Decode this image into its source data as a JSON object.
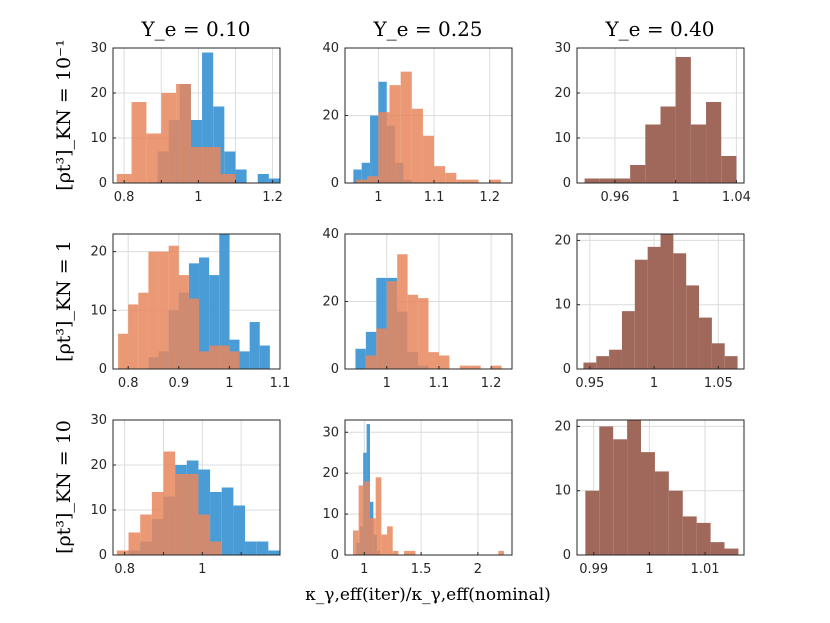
{
  "figure": {
    "col_titles": [
      "Y_e = 0.10",
      "Y_e = 0.25",
      "Y_e = 0.40"
    ],
    "row_labels": [
      "[ρt³]_KN = 10⁻¹",
      "[ρt³]_KN = 1",
      "[ρt³]_KN = 10"
    ],
    "xlabel": "κ_γ,eff(iter)/κ_γ,eff(nominal)",
    "colors": {
      "blue": "#4a9cd6",
      "orange": "#e8875d",
      "overlap": "#a0685a"
    }
  },
  "chart_data": [
    {
      "type": "histogram",
      "title": "Y_e = 0.10",
      "ylabel": "[ρt³]_KN = 10⁻¹",
      "xlim": [
        0.77,
        1.22
      ],
      "ylim": [
        0,
        30
      ],
      "xticks": [
        0.8,
        0.9,
        1.0,
        1.1,
        1.2
      ],
      "xtick_labels": [
        "0.8",
        "",
        "1",
        "",
        "1.2"
      ],
      "yticks": [
        0,
        10,
        20,
        30
      ],
      "ytick_labels": [
        "0",
        "10",
        "20",
        "30"
      ],
      "series": [
        {
          "name": "blue",
          "edges": [
            0.89,
            0.92,
            0.95,
            0.98,
            1.01,
            1.04,
            1.07,
            1.1,
            1.13,
            1.16,
            1.19,
            1.22
          ],
          "counts": [
            7,
            14,
            22,
            14,
            29,
            17,
            7,
            3,
            0,
            2,
            1
          ]
        },
        {
          "name": "orange",
          "edges": [
            0.78,
            0.82,
            0.86,
            0.9,
            0.94,
            0.98,
            1.02,
            1.06,
            1.1
          ],
          "counts": [
            2,
            18,
            11,
            20,
            22,
            8,
            8,
            2
          ]
        }
      ]
    },
    {
      "type": "histogram",
      "title": "Y_e = 0.25",
      "ylabel": "",
      "xlim": [
        0.94,
        1.24
      ],
      "ylim": [
        0,
        40
      ],
      "xticks": [
        1.0,
        1.1,
        1.2
      ],
      "xtick_labels": [
        "1",
        "1.1",
        "1.2"
      ],
      "yticks": [
        0,
        20,
        40
      ],
      "ytick_labels": [
        "0",
        "20",
        "40"
      ],
      "series": [
        {
          "name": "blue",
          "edges": [
            0.955,
            0.97,
            0.985,
            1.0,
            1.015,
            1.03,
            1.045,
            1.06
          ],
          "counts": [
            4,
            6,
            20,
            30,
            17,
            6,
            1
          ]
        },
        {
          "name": "orange",
          "edges": [
            0.96,
            0.98,
            1.0,
            1.02,
            1.04,
            1.06,
            1.08,
            1.1,
            1.12,
            1.14,
            1.16,
            1.18,
            1.2,
            1.22
          ],
          "counts": [
            1,
            2,
            21,
            29,
            33,
            22,
            14,
            5,
            3,
            1,
            1,
            0,
            1
          ]
        }
      ]
    },
    {
      "type": "histogram",
      "title": "Y_e = 0.40",
      "ylabel": "",
      "xlim": [
        0.935,
        1.045
      ],
      "ylim": [
        0,
        30
      ],
      "xticks": [
        0.96,
        1.0,
        1.04
      ],
      "xtick_labels": [
        "0.96",
        "1",
        "1.04"
      ],
      "yticks": [
        0,
        10,
        20,
        30
      ],
      "ytick_labels": [
        "0",
        "10",
        "20",
        "30"
      ],
      "series": [
        {
          "name": "overlap",
          "edges": [
            0.94,
            0.95,
            0.96,
            0.97,
            0.98,
            0.99,
            1.0,
            1.01,
            1.02,
            1.03,
            1.04
          ],
          "counts": [
            1,
            1,
            1,
            4,
            13,
            17,
            28,
            13,
            18,
            6
          ]
        }
      ]
    },
    {
      "type": "histogram",
      "title": "",
      "ylabel": "[ρt³]_KN = 1",
      "xlim": [
        0.77,
        1.1
      ],
      "ylim": [
        0,
        23
      ],
      "xticks": [
        0.8,
        0.9,
        1.0,
        1.1
      ],
      "xtick_labels": [
        "0.8",
        "0.9",
        "1",
        "1.1"
      ],
      "yticks": [
        0,
        10,
        20
      ],
      "ytick_labels": [
        "0",
        "10",
        "20"
      ],
      "series": [
        {
          "name": "blue",
          "edges": [
            0.84,
            0.86,
            0.88,
            0.9,
            0.92,
            0.94,
            0.96,
            0.98,
            1.0,
            1.02,
            1.04,
            1.06,
            1.08
          ],
          "counts": [
            2,
            3,
            10,
            13,
            18,
            19,
            16,
            23,
            5,
            3,
            8,
            4
          ]
        },
        {
          "name": "orange",
          "edges": [
            0.78,
            0.8,
            0.82,
            0.84,
            0.86,
            0.88,
            0.9,
            0.92,
            0.94,
            0.96,
            0.98,
            1.0,
            1.02
          ],
          "counts": [
            6,
            11,
            13,
            20,
            20,
            21,
            16,
            12,
            3,
            4,
            4,
            3
          ]
        }
      ]
    },
    {
      "type": "histogram",
      "title": "",
      "ylabel": "",
      "xlim": [
        0.92,
        1.24
      ],
      "ylim": [
        0,
        40
      ],
      "xticks": [
        1.0,
        1.1,
        1.2
      ],
      "xtick_labels": [
        "1",
        "1.1",
        "1.2"
      ],
      "yticks": [
        0,
        20,
        40
      ],
      "ytick_labels": [
        "0",
        "20",
        "40"
      ],
      "series": [
        {
          "name": "blue",
          "edges": [
            0.94,
            0.96,
            0.98,
            1.0,
            1.02,
            1.04,
            1.06,
            1.08
          ],
          "counts": [
            6,
            11,
            27,
            27,
            17,
            5,
            1
          ]
        },
        {
          "name": "orange",
          "edges": [
            0.96,
            0.98,
            1.0,
            1.02,
            1.04,
            1.06,
            1.08,
            1.1,
            1.12,
            1.14,
            1.16,
            1.18,
            1.2,
            1.22
          ],
          "counts": [
            4,
            12,
            26,
            34,
            22,
            21,
            5,
            4,
            0,
            1,
            1,
            0,
            1
          ]
        }
      ]
    },
    {
      "type": "histogram",
      "title": "",
      "ylabel": "",
      "xlim": [
        0.94,
        1.07
      ],
      "ylim": [
        0,
        21
      ],
      "xticks": [
        0.95,
        1.0,
        1.05
      ],
      "xtick_labels": [
        "0.95",
        "1",
        "1.05"
      ],
      "yticks": [
        0,
        10,
        20
      ],
      "ytick_labels": [
        "0",
        "10",
        "20"
      ],
      "series": [
        {
          "name": "overlap",
          "edges": [
            0.945,
            0.955,
            0.965,
            0.975,
            0.985,
            0.995,
            1.005,
            1.015,
            1.025,
            1.035,
            1.045,
            1.055,
            1.065
          ],
          "counts": [
            1,
            2,
            3,
            9,
            17,
            19,
            21,
            18,
            13,
            8,
            4,
            2
          ]
        }
      ]
    },
    {
      "type": "histogram",
      "title": "",
      "ylabel": "[ρt³]_KN = 10",
      "xlim": [
        0.77,
        1.2
      ],
      "ylim": [
        0,
        30
      ],
      "xticks": [
        0.8,
        0.9,
        1.0,
        1.1
      ],
      "xtick_labels": [
        "0.8",
        "",
        "1",
        ""
      ],
      "yticks": [
        0,
        10,
        20,
        30
      ],
      "ytick_labels": [
        "0",
        "10",
        "20",
        "30"
      ],
      "series": [
        {
          "name": "blue",
          "edges": [
            0.81,
            0.84,
            0.87,
            0.9,
            0.93,
            0.96,
            0.99,
            1.02,
            1.05,
            1.08,
            1.11,
            1.14,
            1.17,
            1.2
          ],
          "counts": [
            1,
            3,
            8,
            13,
            20,
            21,
            19,
            14,
            15,
            11,
            3,
            3,
            1
          ]
        },
        {
          "name": "orange",
          "edges": [
            0.78,
            0.81,
            0.84,
            0.87,
            0.9,
            0.93,
            0.96,
            0.99,
            1.02,
            1.05
          ],
          "counts": [
            1,
            5,
            9,
            14,
            23,
            18,
            18,
            9,
            3
          ]
        }
      ]
    },
    {
      "type": "histogram",
      "title": "",
      "ylabel": "",
      "xlim": [
        0.83,
        2.3
      ],
      "ylim": [
        0,
        33
      ],
      "xticks": [
        1.0,
        1.5,
        2.0
      ],
      "xtick_labels": [
        "1",
        "1.5",
        "2"
      ],
      "yticks": [
        0,
        10,
        20,
        30
      ],
      "ytick_labels": [
        "0",
        "10",
        "20",
        "30"
      ],
      "series": [
        {
          "name": "blue",
          "edges": [
            0.93,
            0.96,
            0.99,
            1.02,
            1.05,
            1.08,
            1.11,
            1.14
          ],
          "counts": [
            3,
            7,
            25,
            32,
            13,
            5,
            1
          ]
        },
        {
          "name": "orange",
          "edges": [
            0.9,
            0.95,
            1.0,
            1.05,
            1.1,
            1.15,
            1.2,
            1.25,
            1.3,
            1.35,
            1.4,
            1.45,
            2.18,
            2.23
          ],
          "counts": [
            6,
            17,
            18,
            9,
            19,
            5,
            7,
            1,
            0,
            1,
            1,
            0,
            1
          ]
        }
      ]
    },
    {
      "type": "histogram",
      "title": "",
      "ylabel": "",
      "xlim": [
        0.987,
        1.017
      ],
      "ylim": [
        0,
        21
      ],
      "xticks": [
        0.99,
        1.0,
        1.01
      ],
      "xtick_labels": [
        "0.99",
        "1",
        "1.01"
      ],
      "yticks": [
        0,
        10,
        20
      ],
      "ytick_labels": [
        "0",
        "10",
        "20"
      ],
      "series": [
        {
          "name": "overlap",
          "edges": [
            0.9885,
            0.991,
            0.9935,
            0.996,
            0.9985,
            1.001,
            1.0035,
            1.006,
            1.0085,
            1.011,
            1.0135,
            1.016
          ],
          "counts": [
            10,
            20,
            18,
            21,
            16,
            13,
            10,
            6,
            5,
            2,
            1
          ]
        }
      ]
    }
  ]
}
